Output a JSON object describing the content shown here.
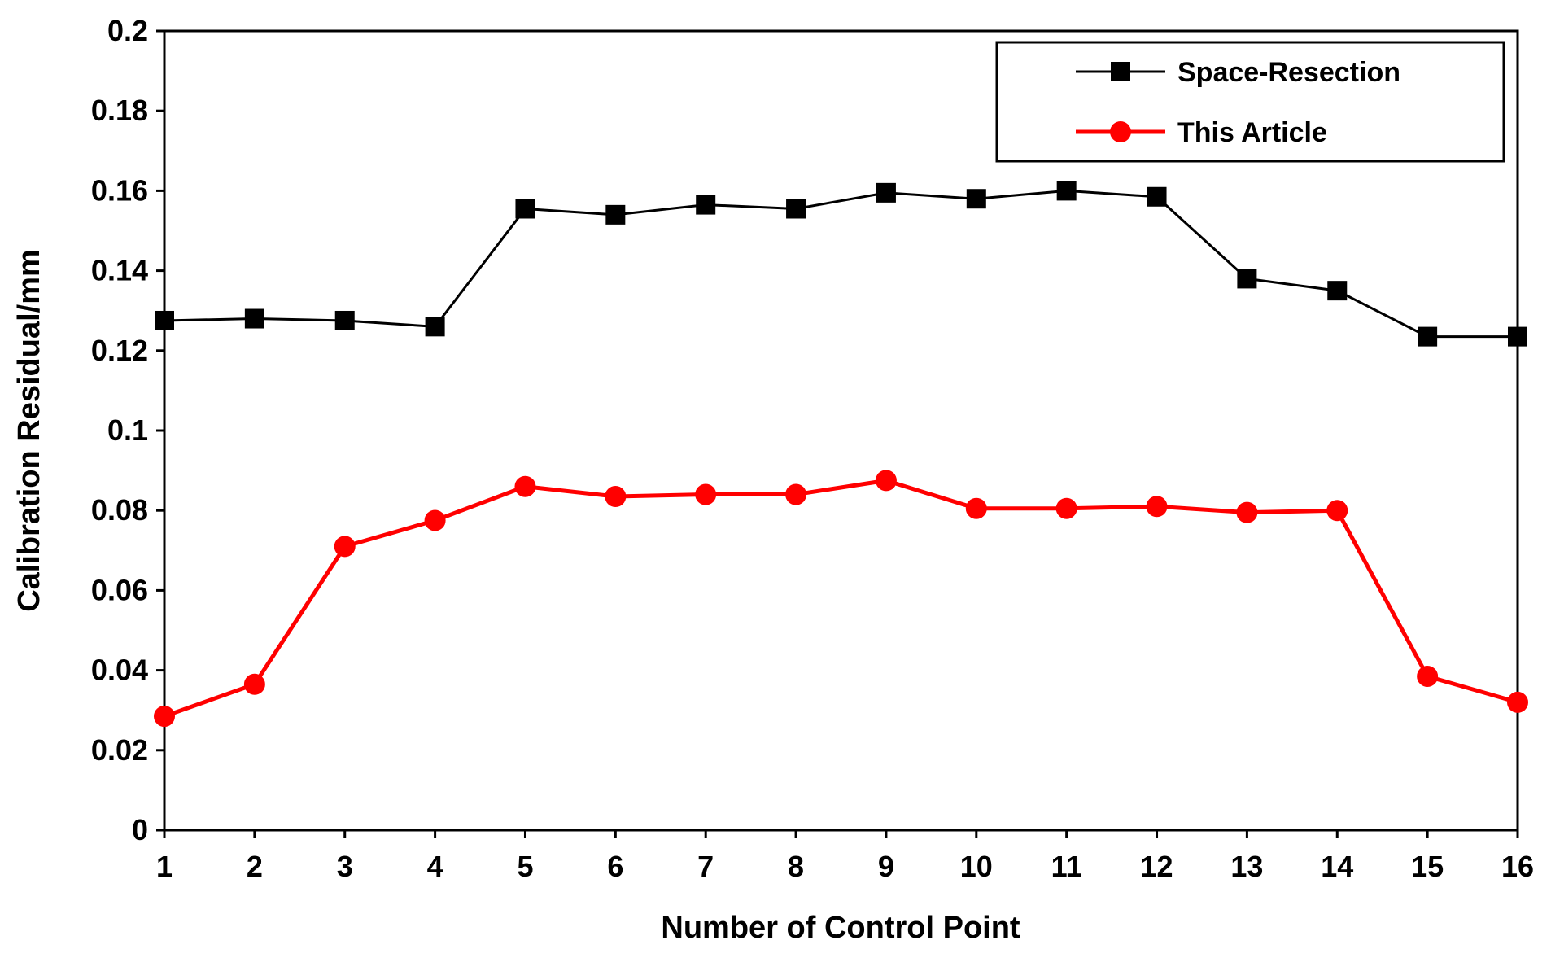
{
  "chart_data": {
    "type": "line",
    "title": "",
    "xlabel": "Number of Control Point",
    "ylabel": "Calibration Residual/mm",
    "x": [
      1,
      2,
      3,
      4,
      5,
      6,
      7,
      8,
      9,
      10,
      11,
      12,
      13,
      14,
      15,
      16
    ],
    "x_tick_labels": [
      "1",
      "2",
      "3",
      "4",
      "5",
      "6",
      "7",
      "8",
      "9",
      "10",
      "11",
      "12",
      "13",
      "14",
      "15",
      "16"
    ],
    "xlim": [
      1,
      16
    ],
    "ylim": [
      0,
      0.2
    ],
    "y_tick_labels": [
      "0",
      "0.02",
      "0.04",
      "0.06",
      "0.08",
      "0.1",
      "0.12",
      "0.14",
      "0.16",
      "0.18",
      "0.2"
    ],
    "y_ticks": [
      0,
      0.02,
      0.04,
      0.06,
      0.08,
      0.1,
      0.12,
      0.14,
      0.16,
      0.18,
      0.2
    ],
    "grid": false,
    "legend_position": "top-right",
    "series": [
      {
        "name": "Space-Resection",
        "color": "#000000",
        "marker": "square",
        "values": [
          0.1275,
          0.128,
          0.1275,
          0.126,
          0.1555,
          0.154,
          0.1565,
          0.1555,
          0.1595,
          0.158,
          0.16,
          0.1585,
          0.138,
          0.135,
          0.1235,
          0.1235
        ]
      },
      {
        "name": "This Article",
        "color": "#ff0000",
        "marker": "circle",
        "values": [
          0.0285,
          0.0365,
          0.071,
          0.0775,
          0.086,
          0.0835,
          0.084,
          0.084,
          0.0875,
          0.0805,
          0.0805,
          0.081,
          0.0795,
          0.08,
          0.0385,
          0.032
        ]
      }
    ]
  }
}
